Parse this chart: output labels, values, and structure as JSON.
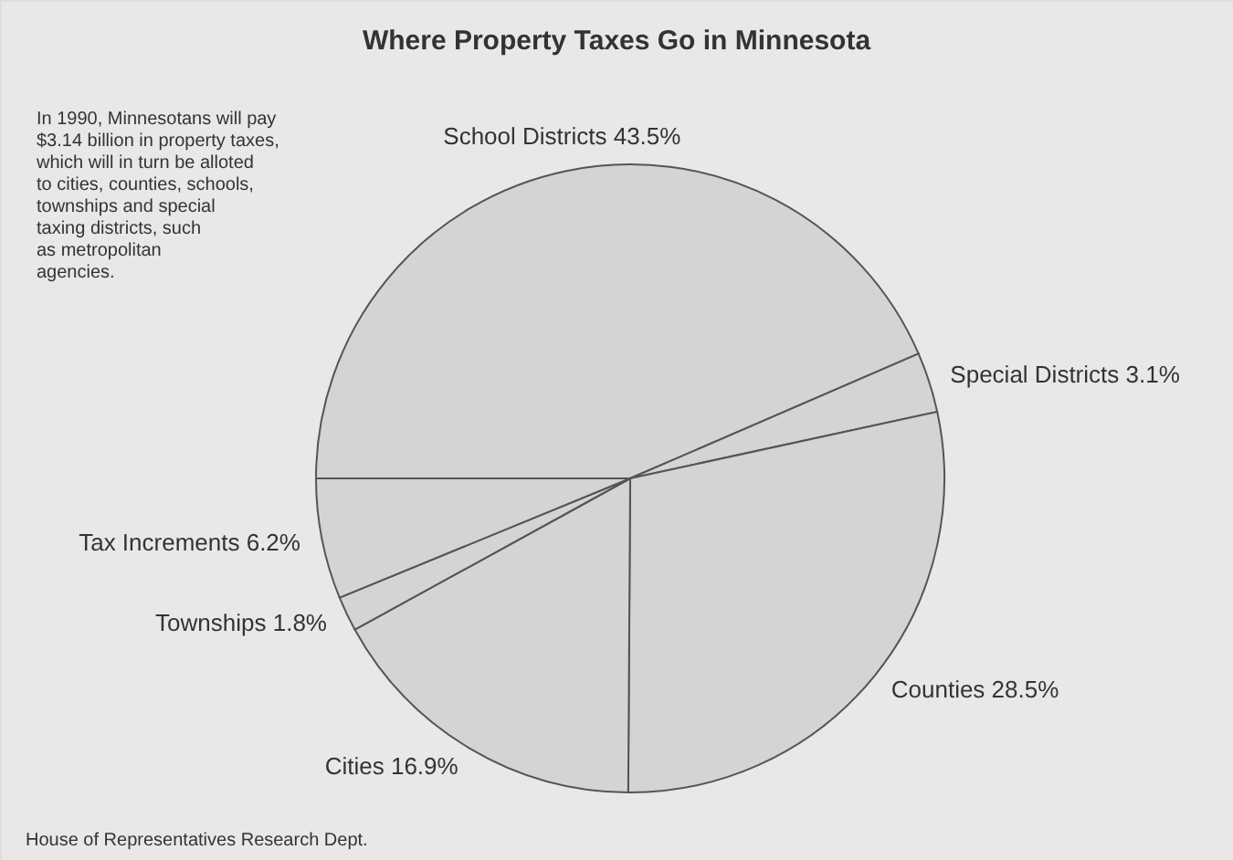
{
  "chart_data": {
    "type": "pie",
    "title": "Where Property Taxes Go in Minnesota",
    "categories": [
      "School Districts",
      "Special Districts",
      "Counties",
      "Cities",
      "Townships",
      "Tax Increments"
    ],
    "values": [
      43.5,
      3.1,
      28.5,
      16.9,
      1.8,
      6.2
    ],
    "value_labels": [
      "43.5%",
      "3.1%",
      "28.5%",
      "16.9%",
      "1.8%",
      "6.2%"
    ],
    "colors": [
      "#d4d4d4",
      "#d4d4d4",
      "#d4d4d4",
      "#d4d4d4",
      "#d4d4d4",
      "#d4d4d4"
    ],
    "annotations": [
      "In 1990, Minnesotans will pay\n$3.14 billion in property taxes,\nwhich will in turn be alloted\nto cities, counties, schools,\ntownships and special\ntaxing districts, such\nas metropolitan\nagencies.",
      "House of Representatives Research Dept."
    ]
  }
}
